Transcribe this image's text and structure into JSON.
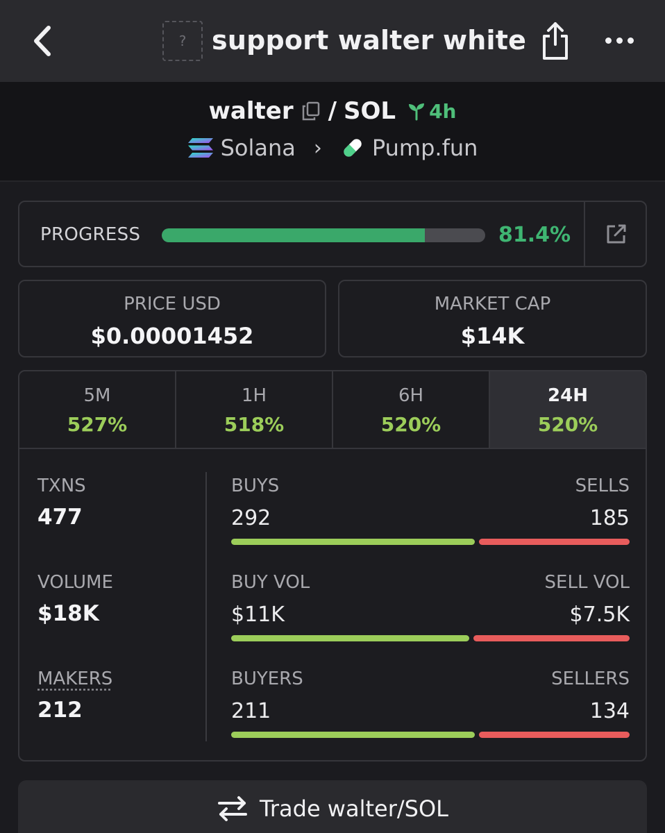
{
  "header": {
    "title": "support walter white",
    "token_image_placeholder": "?"
  },
  "pair": {
    "base": "walter",
    "separator": "/",
    "quote": "SOL",
    "age": "4h",
    "chain": "Solana",
    "dex": "Pump.fun"
  },
  "progress": {
    "label": "PROGRESS",
    "value": "81.4%",
    "fraction": 0.814
  },
  "price": {
    "label": "PRICE USD",
    "value": "$0.00001452"
  },
  "market_cap": {
    "label": "MARKET CAP",
    "value": "$14K"
  },
  "timeframes": [
    {
      "label": "5M",
      "value": "527%",
      "active": false
    },
    {
      "label": "1H",
      "value": "518%",
      "active": false
    },
    {
      "label": "6H",
      "value": "520%",
      "active": false
    },
    {
      "label": "24H",
      "value": "520%",
      "active": true
    }
  ],
  "metrics": {
    "txns": {
      "label": "TXNS",
      "value": "477"
    },
    "volume": {
      "label": "VOLUME",
      "value": "$18K"
    },
    "makers": {
      "label": "MAKERS",
      "value": "212"
    }
  },
  "splits": {
    "buys_sells": {
      "left_label": "BUYS",
      "right_label": "SELLS",
      "left_value": "292",
      "right_value": "185",
      "left_fraction": 0.612
    },
    "vol": {
      "left_label": "BUY VOL",
      "right_label": "SELL VOL",
      "left_value": "$11K",
      "right_value": "$7.5K",
      "left_fraction": 0.598
    },
    "buyers_sellers": {
      "left_label": "BUYERS",
      "right_label": "SELLERS",
      "left_value": "211",
      "right_value": "134",
      "left_fraction": 0.612
    }
  },
  "trade_button": {
    "label": "Trade walter/SOL"
  },
  "colors": {
    "accent_green": "#3fb572",
    "buy_green": "#9ccd5a",
    "sell_red": "#e85c5c",
    "age_green": "#4fbf7a"
  },
  "icons": {
    "back": "chevron-left-icon",
    "share": "share-icon",
    "more": "ellipsis-icon",
    "copy": "copy-icon",
    "age": "sprout-icon",
    "chain": "solana-icon",
    "dex": "pill-icon",
    "external": "external-link-icon",
    "trade": "swap-arrows-icon"
  }
}
